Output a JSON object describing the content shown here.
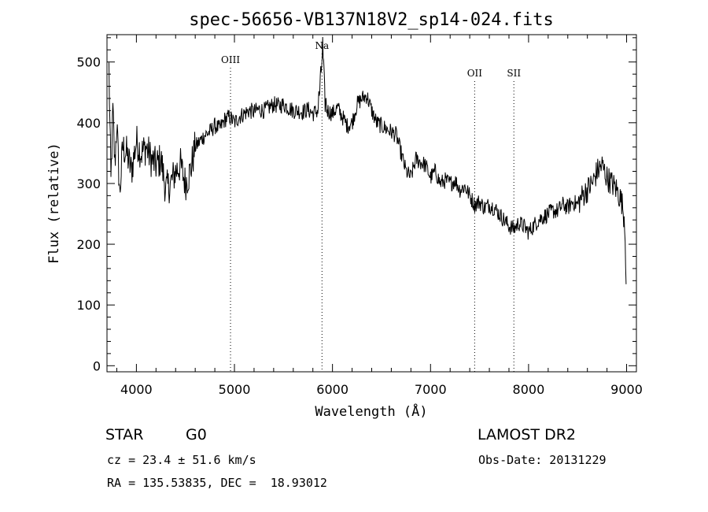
{
  "info": {
    "object_class": "STAR",
    "subclass": "G0",
    "survey": "LAMOST DR2",
    "redshift": "cz = 23.4 ± 51.6 km/s",
    "obs_date": "Obs-Date: 20131229",
    "coords": "RA = 135.53835, DEC =  18.93012"
  },
  "chart_data": {
    "type": "line",
    "title": "spec-56656-VB137N18V2_sp14-024.fits",
    "xlabel": "Wavelength (Å)",
    "ylabel": "Flux (relative)",
    "xlim": [
      3700,
      9100
    ],
    "ylim": [
      -10,
      545
    ],
    "grid": false,
    "x_ticks": [
      4000,
      5000,
      6000,
      7000,
      8000,
      9000
    ],
    "y_ticks": [
      0,
      100,
      200,
      300,
      400,
      500
    ],
    "line_color": "#000000",
    "lines": [
      {
        "name": "OIII",
        "x": 4960
      },
      {
        "name": "Na",
        "x": 5893
      },
      {
        "name": "OII",
        "x": 7450
      },
      {
        "name": "SII",
        "x": 7850
      }
    ],
    "series": [
      {
        "x": [
          3720,
          3740,
          3760,
          3780,
          3800,
          3830,
          3860,
          3900,
          3950,
          4000,
          4050,
          4100,
          4150,
          4200,
          4250,
          4300,
          4350,
          4400,
          4450,
          4500,
          4550,
          4600,
          4650,
          4700,
          4750,
          4800,
          4850,
          4900,
          4950,
          5000,
          5050,
          5100,
          5150,
          5200,
          5250,
          5300,
          5350,
          5400,
          5450,
          5500,
          5550,
          5600,
          5650,
          5700,
          5750,
          5800,
          5850,
          5880,
          5900,
          5920,
          5950,
          6000,
          6050,
          6100,
          6150,
          6200,
          6250,
          6300,
          6350,
          6400,
          6450,
          6500,
          6550,
          6600,
          6650,
          6700,
          6750,
          6800,
          6850,
          6900,
          6950,
          7000,
          7050,
          7100,
          7150,
          7200,
          7250,
          7300,
          7350,
          7400,
          7450,
          7500,
          7550,
          7600,
          7650,
          7700,
          7750,
          7800,
          7850,
          7900,
          7950,
          8000,
          8050,
          8100,
          8150,
          8200,
          8250,
          8300,
          8350,
          8400,
          8450,
          8500,
          8550,
          8600,
          8650,
          8700,
          8750,
          8800,
          8850,
          8900,
          8950,
          8980,
          8995
        ],
        "y": [
          490,
          300,
          420,
          330,
          400,
          280,
          360,
          350,
          320,
          370,
          350,
          360,
          340,
          330,
          340,
          290,
          300,
          320,
          330,
          300,
          320,
          360,
          370,
          380,
          385,
          395,
          390,
          405,
          410,
          400,
          410,
          415,
          420,
          418,
          422,
          420,
          425,
          430,
          428,
          430,
          425,
          420,
          420,
          418,
          422,
          415,
          420,
          470,
          525,
          440,
          420,
          415,
          425,
          410,
          395,
          400,
          430,
          440,
          445,
          420,
          400,
          395,
          390,
          385,
          380,
          350,
          320,
          310,
          340,
          335,
          330,
          310,
          320,
          300,
          305,
          300,
          305,
          290,
          295,
          280,
          265,
          270,
          260,
          265,
          260,
          250,
          240,
          230,
          225,
          235,
          230,
          220,
          230,
          240,
          245,
          250,
          255,
          255,
          265,
          260,
          270,
          265,
          280,
          290,
          300,
          320,
          330,
          310,
          300,
          290,
          270,
          240,
          150
        ]
      }
    ]
  }
}
